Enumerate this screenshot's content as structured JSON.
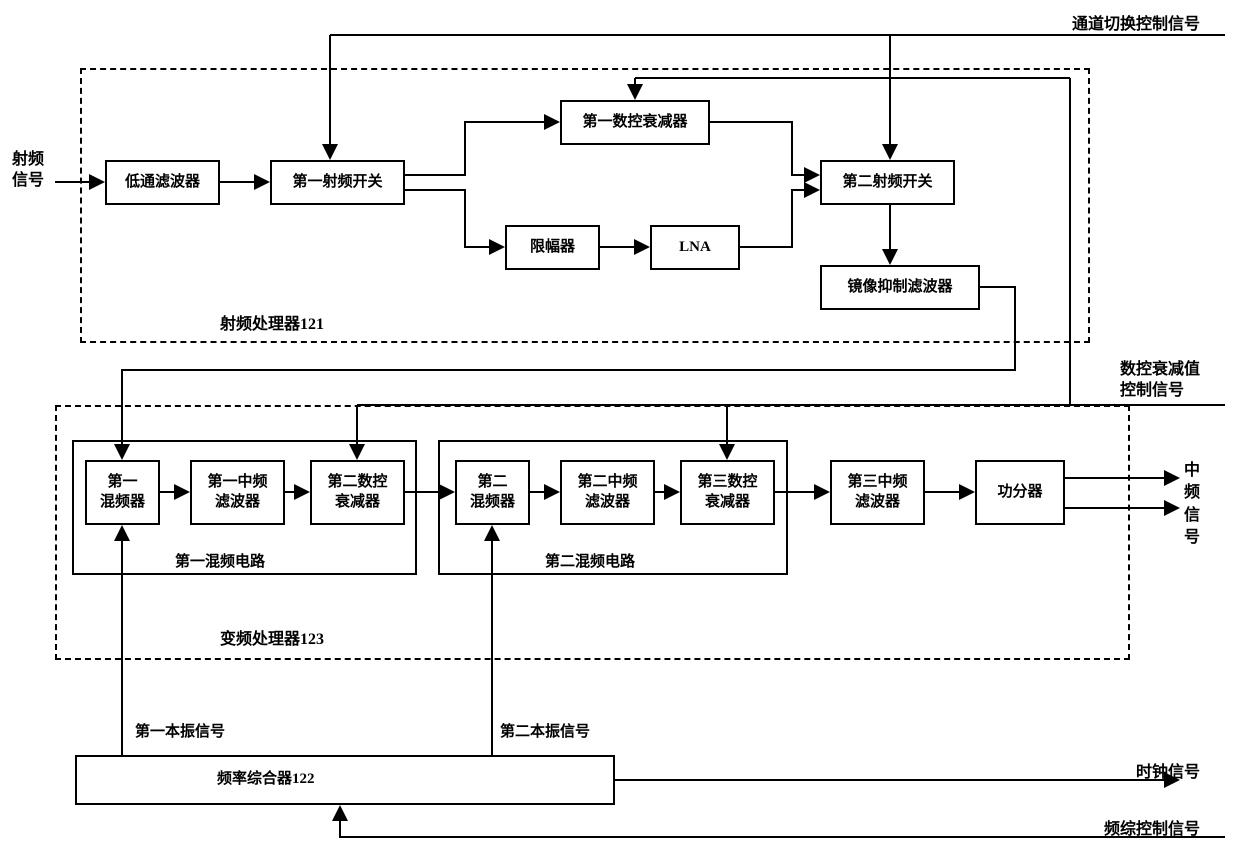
{
  "signals": {
    "rf_in": "射频\n信号",
    "channel_switch": "通道切换控制信号",
    "attenuation_ctrl": "数控衰减值\n控制信号",
    "if_out": "中\n频\n信\n号",
    "clock": "时钟信号",
    "freq_ctrl": "频综控制信号",
    "lo1": "第一本振信号",
    "lo2": "第二本振信号"
  },
  "blocks": {
    "lpf": "低通滤波器",
    "rf_sw1": "第一射频开关",
    "atten1": "第一数控衰减器",
    "limiter": "限幅器",
    "lna": "LNA",
    "rf_sw2": "第二射频开关",
    "image_filter": "镜像抑制滤波器",
    "mixer1": "第一\n混频器",
    "if_filter1": "第一中频\n滤波器",
    "atten2": "第二数控\n衰减器",
    "mixer2": "第二\n混频器",
    "if_filter2": "第二中频\n滤波器",
    "atten3": "第三数控\n衰减器",
    "if_filter3": "第三中频\n滤波器",
    "divider": "功分器",
    "freq_synth": "频率综合器122"
  },
  "regions": {
    "rf_proc": "射频处理器121",
    "freq_proc": "变频处理器123",
    "mix_circuit1": "第一混频电路",
    "mix_circuit2": "第二混频电路"
  },
  "style": {
    "stroke": "#000000",
    "stroke_width": 2,
    "arrow_size": 8
  }
}
